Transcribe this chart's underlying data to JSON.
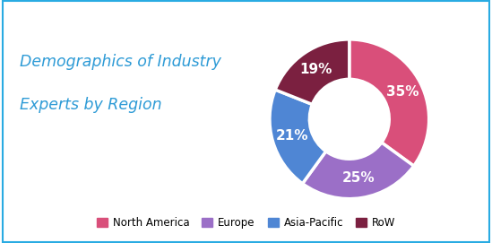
{
  "title_line1": "Demographics of Industry",
  "title_line2": "Experts by Region",
  "title_color": "#2E9BD6",
  "title_fontsize": 12.5,
  "segments": [
    {
      "label": "North America",
      "value": 35,
      "color": "#D94F7A"
    },
    {
      "label": "Europe",
      "value": 25,
      "color": "#9B6FC7"
    },
    {
      "label": "Asia-Pacific",
      "value": 21,
      "color": "#4F86D4"
    },
    {
      "label": "RoW",
      "value": 19,
      "color": "#7B2040"
    }
  ],
  "pct_labels": [
    "35%",
    "25%",
    "21%",
    "19%"
  ],
  "background_color": "#FFFFFF",
  "border_color": "#29ABE2",
  "label_fontsize": 11,
  "label_color": "#FFFFFF",
  "legend_fontsize": 8.5
}
